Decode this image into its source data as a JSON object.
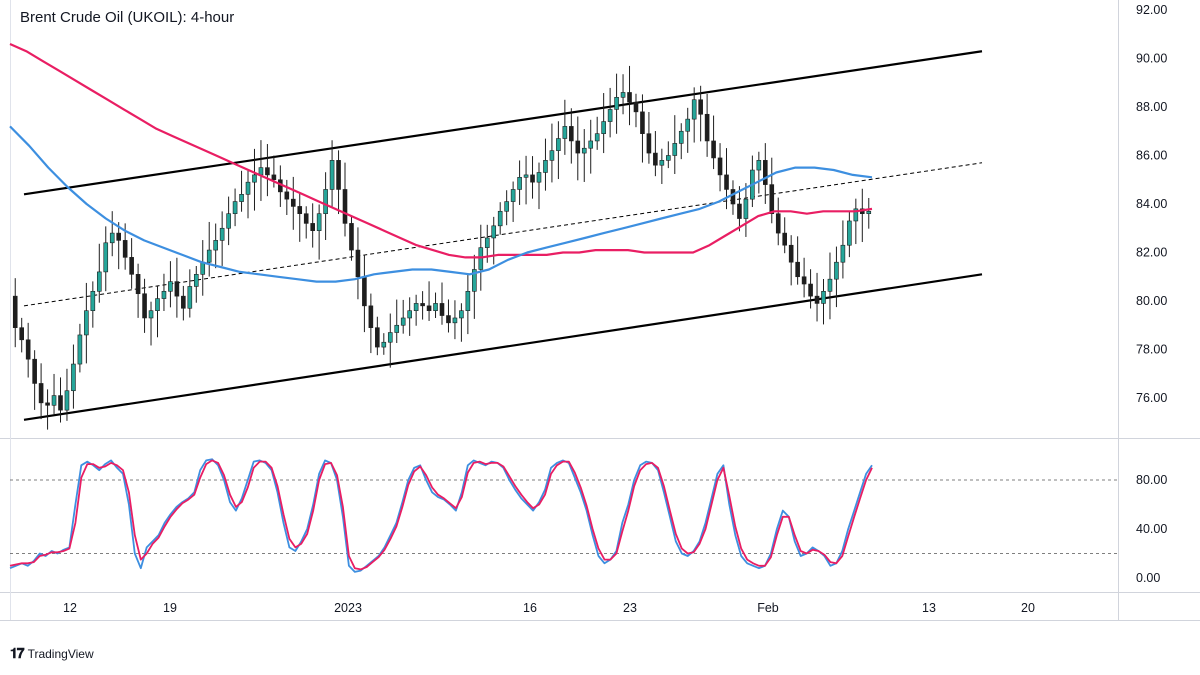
{
  "title": "Brent Crude Oil (UKOIL): 4-hour",
  "brand": {
    "logo_icon": "tradingview-logo-icon",
    "name": "TradingView"
  },
  "colors": {
    "ma_fast": "#e91e63",
    "ma_slow": "#3d8fe0",
    "stoch_k": "#3d8fe0",
    "stoch_d": "#e91e63",
    "bull": "#26a69a",
    "candle": "#1e1e1e"
  },
  "chart_data": [
    {
      "type": "candlestick",
      "title": "Brent Crude Oil (UKOIL): 4-hour",
      "y_ticks": [
        "92.00",
        "90.00",
        "88.00",
        "86.00",
        "84.00",
        "82.00",
        "80.00",
        "78.00",
        "76.00"
      ],
      "ylim": [
        74.7,
        92.2
      ],
      "x_ticks": [
        {
          "label": "12",
          "bar": 8
        },
        {
          "label": "19",
          "bar": 38
        },
        {
          "label": "2023",
          "bar": 68
        },
        {
          "label": "16",
          "bar": 105
        },
        {
          "label": "23",
          "bar": 125
        },
        {
          "label": "Feb",
          "bar": 152
        },
        {
          "label": "13",
          "bar": 185
        },
        {
          "label": "20",
          "bar": 205
        }
      ],
      "price_close": [
        78.9,
        78.4,
        77.6,
        76.6,
        75.8,
        75.7,
        76.1,
        75.5,
        76.3,
        77.4,
        78.6,
        79.6,
        80.4,
        81.2,
        82.4,
        82.8,
        82.5,
        81.8,
        81.1,
        80.3,
        79.3,
        79.6,
        80.1,
        80.4,
        80.8,
        80.2,
        79.7,
        80.6,
        81.1,
        81.6,
        82.1,
        82.5,
        83.0,
        83.6,
        84.1,
        84.4,
        84.9,
        85.2,
        85.5,
        85.2,
        85.0,
        84.5,
        84.2,
        83.9,
        83.6,
        83.2,
        82.9,
        83.6,
        84.6,
        85.8,
        84.6,
        83.2,
        82.1,
        81.0,
        79.8,
        78.9,
        78.1,
        78.3,
        78.7,
        79.0,
        79.3,
        79.6,
        79.9,
        79.8,
        79.6,
        79.9,
        79.4,
        79.1,
        79.3,
        79.6,
        80.4,
        81.3,
        82.2,
        82.6,
        83.1,
        83.7,
        84.1,
        84.6,
        85.1,
        85.2,
        84.9,
        85.3,
        85.8,
        86.2,
        86.7,
        87.2,
        86.6,
        86.1,
        86.3,
        86.6,
        86.9,
        87.4,
        87.9,
        88.4,
        88.6,
        88.2,
        87.8,
        86.9,
        86.1,
        85.6,
        85.8,
        86.0,
        86.5,
        87.0,
        87.5,
        88.3,
        87.7,
        86.6,
        85.9,
        85.2,
        84.6,
        84.0,
        83.4,
        84.2,
        85.4,
        85.8,
        84.8,
        83.6,
        82.8,
        82.3,
        81.6,
        81.0,
        80.7,
        80.2,
        79.9,
        80.4,
        80.9,
        81.6,
        82.3,
        83.3,
        83.8,
        83.6,
        83.7
      ],
      "x_count": 212,
      "series": [
        {
          "name": "",
          "values": [
            90.6,
            90.3,
            89.9,
            89.5,
            89.1,
            88.7,
            88.3,
            87.9,
            87.5,
            87.1,
            86.8,
            86.5,
            86.2,
            85.9,
            85.6,
            85.3,
            85.0,
            84.7,
            84.4,
            84.1,
            83.8,
            83.5,
            83.2,
            82.9,
            82.6,
            82.3,
            82.1,
            81.9,
            81.8,
            81.8,
            81.9,
            81.9,
            81.9,
            81.9,
            82.0,
            82.0,
            82.1,
            82.1,
            82.1,
            82.0,
            82.0,
            82.0,
            82.0,
            82.3,
            82.7,
            83.1,
            83.5,
            83.7,
            83.7,
            83.6,
            83.7,
            83.7,
            83.7,
            83.8
          ]
        },
        {
          "name": "",
          "values": [
            87.2,
            86.4,
            85.5,
            84.7,
            84.0,
            83.4,
            82.9,
            82.5,
            82.2,
            81.9,
            81.6,
            81.4,
            81.2,
            81.1,
            81.0,
            80.9,
            80.8,
            80.8,
            80.9,
            81.1,
            81.2,
            81.3,
            81.3,
            81.2,
            81.1,
            81.3,
            81.7,
            82.0,
            82.2,
            82.4,
            82.6,
            82.8,
            83.0,
            83.2,
            83.4,
            83.6,
            83.8,
            84.1,
            84.5,
            84.9,
            85.3,
            85.5,
            85.5,
            85.4,
            85.2,
            85.1
          ]
        }
      ],
      "channel": {
        "upper": [
          84.4,
          90.3
        ],
        "lower": [
          75.1,
          81.1
        ],
        "mid": [
          79.8,
          85.7
        ]
      }
    },
    {
      "type": "line",
      "title": "",
      "y_ticks": [
        "80.00",
        "40.00",
        "0.00"
      ],
      "ylim": [
        -5,
        105
      ],
      "levels": [
        80,
        20
      ],
      "series": [
        {
          "name": "",
          "values": [
            8,
            10,
            12,
            10,
            14,
            20,
            18,
            22,
            20,
            23,
            25,
            60,
            92,
            95,
            92,
            88,
            93,
            96,
            90,
            85,
            60,
            20,
            8,
            25,
            30,
            35,
            45,
            52,
            58,
            62,
            65,
            70,
            88,
            96,
            97,
            92,
            80,
            62,
            55,
            65,
            80,
            95,
            96,
            94,
            88,
            70,
            45,
            25,
            22,
            30,
            40,
            60,
            85,
            96,
            94,
            80,
            50,
            10,
            5,
            6,
            10,
            14,
            18,
            25,
            35,
            45,
            62,
            80,
            90,
            92,
            80,
            70,
            66,
            64,
            60,
            55,
            70,
            92,
            96,
            94,
            92,
            95,
            94,
            90,
            80,
            72,
            65,
            60,
            55,
            62,
            72,
            90,
            94,
            96,
            94,
            82,
            70,
            55,
            35,
            18,
            12,
            15,
            22,
            45,
            60,
            80,
            92,
            95,
            94,
            88,
            70,
            50,
            30,
            20,
            18,
            22,
            30,
            45,
            65,
            85,
            92,
            60,
            35,
            18,
            12,
            10,
            8,
            10,
            20,
            40,
            55,
            50,
            30,
            18,
            20,
            25,
            22,
            18,
            10,
            12,
            22,
            40,
            55,
            70,
            85,
            92
          ]
        },
        {
          "name": "",
          "values": [
            10,
            11,
            12,
            12,
            13,
            18,
            19,
            21,
            21,
            22,
            24,
            45,
            82,
            93,
            93,
            90,
            91,
            94,
            92,
            88,
            70,
            35,
            15,
            20,
            28,
            33,
            42,
            50,
            56,
            61,
            64,
            68,
            82,
            93,
            96,
            94,
            84,
            68,
            58,
            62,
            74,
            90,
            95,
            95,
            90,
            75,
            52,
            32,
            25,
            28,
            36,
            55,
            80,
            93,
            94,
            84,
            58,
            18,
            8,
            7,
            9,
            13,
            17,
            23,
            32,
            42,
            58,
            76,
            87,
            91,
            84,
            74,
            68,
            65,
            61,
            57,
            66,
            86,
            94,
            95,
            93,
            94,
            94,
            91,
            83,
            75,
            68,
            62,
            57,
            60,
            68,
            85,
            92,
            95,
            95,
            86,
            74,
            59,
            40,
            24,
            15,
            15,
            20,
            38,
            55,
            75,
            88,
            93,
            94,
            90,
            75,
            55,
            36,
            24,
            20,
            21,
            28,
            40,
            60,
            80,
            90,
            67,
            42,
            24,
            15,
            12,
            10,
            10,
            17,
            35,
            50,
            50,
            35,
            22,
            20,
            23,
            22,
            19,
            13,
            12,
            18,
            34,
            50,
            65,
            80,
            90
          ]
        }
      ]
    }
  ]
}
